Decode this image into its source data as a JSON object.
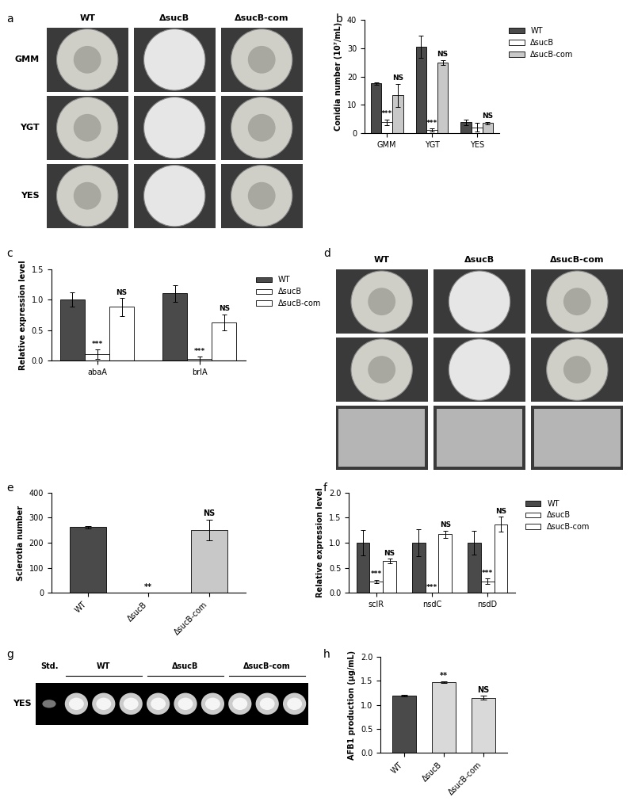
{
  "chart_data": [
    {
      "title": "b",
      "type": "bar",
      "categories": [
        "GMM",
        "YGT",
        "YES"
      ],
      "ylabel": "Conidia number (10⁷/mL)",
      "ylim": [
        0,
        40
      ],
      "yticks": [
        0,
        10,
        20,
        30,
        40
      ],
      "legend": "upper left",
      "series": [
        {
          "name": "WT",
          "color": "#4a4a4a",
          "values": [
            17.5,
            30.5,
            3.8
          ],
          "errors": [
            0.5,
            4.0,
            1.0
          ]
        },
        {
          "name": "ΔsucB",
          "color": "#ffffff",
          "values": [
            3.8,
            1.0,
            2.0
          ],
          "errors": [
            1.0,
            0.5,
            1.5
          ],
          "annotations": [
            "***",
            "***",
            null
          ]
        },
        {
          "name": "ΔsucB-com",
          "color": "#c8c8c8",
          "values": [
            13.3,
            25.0,
            3.5
          ],
          "errors": [
            4.0,
            0.8,
            0.5
          ],
          "annotations": [
            "NS",
            "NS",
            "NS"
          ]
        }
      ]
    },
    {
      "title": "c",
      "type": "bar",
      "categories": [
        "abaA",
        "brlA"
      ],
      "ylabel": "Relative expression level",
      "ylim": [
        0,
        1.5
      ],
      "yticks": [
        {
          "value": 0,
          "label": "0.0"
        },
        0.5,
        {
          "value": 1,
          "label": "1.0"
        },
        1.5
      ],
      "legend": "upper left",
      "series": [
        {
          "name": "WT",
          "color": "#4a4a4a",
          "values": [
            1.0,
            1.1
          ],
          "errors": [
            0.12,
            0.14
          ]
        },
        {
          "name": "ΔsucB",
          "color": "#ffffff",
          "values": [
            0.1,
            0.03
          ],
          "errors": [
            0.08,
            0.03
          ],
          "annotations": [
            "***",
            "***"
          ]
        },
        {
          "name": "ΔsucB-com",
          "color": "#ffffff",
          "values": [
            0.88,
            0.63
          ],
          "errors": [
            0.15,
            0.13
          ],
          "annotations": [
            "NS",
            "NS"
          ]
        }
      ]
    },
    {
      "title": "e",
      "type": "bar",
      "categories": [
        "WT",
        "ΔsucB",
        "ΔsucB-com"
      ],
      "ylabel": "Sclerotia number",
      "ylim": [
        0,
        400
      ],
      "yticks": [
        0,
        100,
        200,
        300,
        400
      ],
      "values": [
        262,
        0,
        250
      ],
      "errors": [
        5,
        0,
        42
      ],
      "colors": [
        "#4a4a4a",
        "#4a4a4a",
        "#c8c8c8"
      ],
      "annotations": [
        null,
        "**",
        "NS"
      ]
    },
    {
      "title": "f",
      "type": "bar",
      "categories": [
        "sclR",
        "nsdC",
        "nsdD"
      ],
      "ylabel": "Relative expression level",
      "ylim": [
        0,
        2
      ],
      "yticks": [
        {
          "value": 0,
          "label": "0.0"
        },
        0.5,
        {
          "value": 1,
          "label": "1.0"
        },
        1.5,
        {
          "value": 2,
          "label": "2.0"
        }
      ],
      "legend": "upper left",
      "series": [
        {
          "name": "WT",
          "color": "#4a4a4a",
          "values": [
            1.0,
            1.0,
            1.0
          ],
          "errors": [
            0.25,
            0.27,
            0.24
          ]
        },
        {
          "name": "ΔsucB",
          "color": "#ffffff",
          "values": [
            0.23,
            0.0,
            0.23
          ],
          "errors": [
            0.03,
            0.0,
            0.05
          ],
          "annotations": [
            "***",
            "***",
            "***"
          ]
        },
        {
          "name": "ΔsucB-com",
          "color": "#ffffff",
          "values": [
            0.63,
            1.17,
            1.37
          ],
          "errors": [
            0.05,
            0.07,
            0.15
          ],
          "annotations": [
            "NS",
            "NS",
            "NS"
          ]
        }
      ]
    },
    {
      "title": "h",
      "type": "bar",
      "categories": [
        "WT",
        "ΔsucB",
        "ΔsucB-com"
      ],
      "ylabel": "AFB1 production (μg/mL)",
      "ylim": [
        0,
        2
      ],
      "yticks": [
        {
          "value": 0,
          "label": "0.0"
        },
        0.5,
        {
          "value": 1,
          "label": "1.0"
        },
        1.5,
        {
          "value": 2,
          "label": "2.0"
        }
      ],
      "values": [
        1.19,
        1.47,
        1.15
      ],
      "errors": [
        0.02,
        0.02,
        0.04
      ],
      "colors": [
        "#4a4a4a",
        "#d9d9d9",
        "#d9d9d9"
      ],
      "annotations": [
        null,
        "**",
        "NS"
      ]
    }
  ],
  "images": [
    {
      "title": "a",
      "type": "image",
      "columns": [
        "WT",
        "ΔsucB",
        "ΔsucB-com"
      ],
      "rows": [
        "GMM",
        "YGT",
        "YES"
      ]
    },
    {
      "title": "d",
      "type": "image",
      "columns": [
        "WT",
        "ΔsucB",
        "ΔsucB-com"
      ]
    },
    {
      "title": "g",
      "type": "image",
      "columns": [
        "Std.",
        "WT",
        "ΔsucB",
        "ΔsucB-com"
      ],
      "rows": [
        "YES"
      ]
    }
  ]
}
